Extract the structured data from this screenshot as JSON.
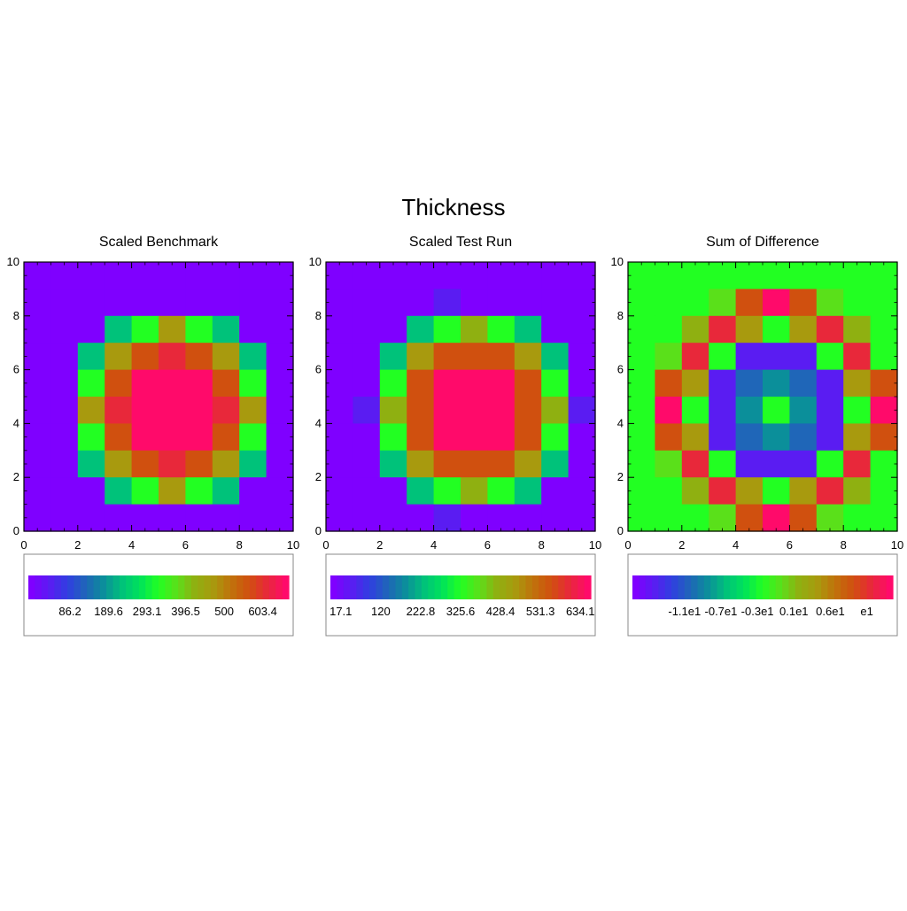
{
  "title": "Thickness",
  "colorbar_colors": [
    "#7f00ff",
    "#5a1cf2",
    "#2f3fe0",
    "#1f66b8",
    "#0b8f9a",
    "#00c27a",
    "#00e35a",
    "#22ff22",
    "#5ae01a",
    "#8fb011",
    "#a89a0e",
    "#c0720c",
    "#d0500f",
    "#e8283a",
    "#ff0a6a"
  ],
  "chart_data": [
    {
      "type": "heatmap",
      "title": "Scaled Benchmark",
      "x": [
        0,
        1,
        2,
        3,
        4,
        5,
        6,
        7,
        8,
        9,
        10
      ],
      "y": [
        0,
        1,
        2,
        3,
        4,
        5,
        6,
        7,
        8,
        9,
        10
      ],
      "xlim": [
        0,
        10
      ],
      "ylim": [
        0,
        10
      ],
      "xticks": [
        "0",
        "2",
        "4",
        "6",
        "8",
        "10"
      ],
      "yticks": [
        "0",
        "2",
        "4",
        "6",
        "8",
        "10"
      ],
      "grid": false,
      "colorbar_labels": [
        "86.2",
        "189.6",
        "293.1",
        "396.5",
        "500",
        "603.4"
      ],
      "color_index": [
        [
          0,
          0,
          0,
          0,
          0,
          0,
          0,
          0,
          0,
          0
        ],
        [
          0,
          0,
          0,
          0,
          0,
          0,
          0,
          0,
          0,
          0
        ],
        [
          0,
          0,
          0,
          5,
          7,
          10,
          7,
          5,
          0,
          0
        ],
        [
          0,
          0,
          5,
          10,
          12,
          13,
          12,
          10,
          5,
          0
        ],
        [
          0,
          0,
          7,
          12,
          14,
          14,
          14,
          12,
          7,
          0
        ],
        [
          0,
          0,
          10,
          13,
          14,
          14,
          14,
          13,
          10,
          0
        ],
        [
          0,
          0,
          7,
          12,
          14,
          14,
          14,
          12,
          7,
          0
        ],
        [
          0,
          0,
          5,
          10,
          12,
          13,
          12,
          10,
          5,
          0
        ],
        [
          0,
          0,
          0,
          5,
          7,
          10,
          7,
          5,
          0,
          0
        ],
        [
          0,
          0,
          0,
          0,
          0,
          0,
          0,
          0,
          0,
          0
        ]
      ]
    },
    {
      "type": "heatmap",
      "title": "Scaled Test Run",
      "x": [
        0,
        1,
        2,
        3,
        4,
        5,
        6,
        7,
        8,
        9,
        10
      ],
      "y": [
        0,
        1,
        2,
        3,
        4,
        5,
        6,
        7,
        8,
        9,
        10
      ],
      "xlim": [
        0,
        10
      ],
      "ylim": [
        0,
        10
      ],
      "xticks": [
        "0",
        "2",
        "4",
        "6",
        "8",
        "10"
      ],
      "yticks": [
        "0",
        "2",
        "4",
        "6",
        "8",
        "10"
      ],
      "grid": false,
      "colorbar_labels": [
        "17.1",
        "120",
        "222.8",
        "325.6",
        "428.4",
        "531.3",
        "634.1"
      ],
      "color_index": [
        [
          0,
          0,
          0,
          0,
          0,
          0,
          0,
          0,
          0,
          0
        ],
        [
          0,
          0,
          0,
          0,
          1,
          0,
          0,
          0,
          0,
          0
        ],
        [
          0,
          0,
          0,
          5,
          7,
          9,
          7,
          5,
          0,
          0
        ],
        [
          0,
          0,
          5,
          10,
          12,
          12,
          12,
          10,
          5,
          0
        ],
        [
          0,
          0,
          7,
          12,
          14,
          14,
          14,
          12,
          7,
          0
        ],
        [
          0,
          1,
          9,
          12,
          14,
          14,
          14,
          12,
          9,
          1
        ],
        [
          0,
          0,
          7,
          12,
          14,
          14,
          14,
          12,
          7,
          0
        ],
        [
          0,
          0,
          5,
          10,
          12,
          12,
          12,
          10,
          5,
          0
        ],
        [
          0,
          0,
          0,
          5,
          7,
          9,
          7,
          5,
          0,
          0
        ],
        [
          0,
          0,
          0,
          0,
          1,
          0,
          0,
          0,
          0,
          0
        ]
      ]
    },
    {
      "type": "heatmap",
      "title": "Sum of Difference",
      "x": [
        0,
        1,
        2,
        3,
        4,
        5,
        6,
        7,
        8,
        9,
        10
      ],
      "y": [
        0,
        1,
        2,
        3,
        4,
        5,
        6,
        7,
        8,
        9,
        10
      ],
      "xlim": [
        0,
        10
      ],
      "ylim": [
        0,
        10
      ],
      "xticks": [
        "0",
        "2",
        "4",
        "6",
        "8",
        "10"
      ],
      "yticks": [
        "0",
        "2",
        "4",
        "6",
        "8",
        "10"
      ],
      "grid": false,
      "colorbar_labels": [
        "-1.1e1",
        "-0.7e1",
        "-0.3e1",
        "0.1e1",
        "0.6e1",
        "e1"
      ],
      "color_index": [
        [
          7,
          7,
          7,
          7,
          7,
          7,
          7,
          7,
          7,
          7
        ],
        [
          7,
          7,
          7,
          8,
          12,
          14,
          12,
          8,
          7,
          7
        ],
        [
          7,
          7,
          9,
          13,
          10,
          7,
          10,
          13,
          9,
          7
        ],
        [
          7,
          8,
          13,
          7,
          1,
          1,
          1,
          7,
          13,
          7
        ],
        [
          7,
          12,
          10,
          1,
          3,
          4,
          3,
          1,
          10,
          12
        ],
        [
          7,
          14,
          7,
          1,
          4,
          7,
          4,
          1,
          7,
          14
        ],
        [
          7,
          12,
          10,
          1,
          3,
          4,
          3,
          1,
          10,
          12
        ],
        [
          7,
          8,
          13,
          7,
          1,
          1,
          1,
          7,
          13,
          7
        ],
        [
          7,
          7,
          9,
          13,
          10,
          7,
          10,
          13,
          9,
          7
        ],
        [
          7,
          7,
          7,
          8,
          12,
          14,
          12,
          8,
          7,
          7
        ]
      ]
    }
  ]
}
